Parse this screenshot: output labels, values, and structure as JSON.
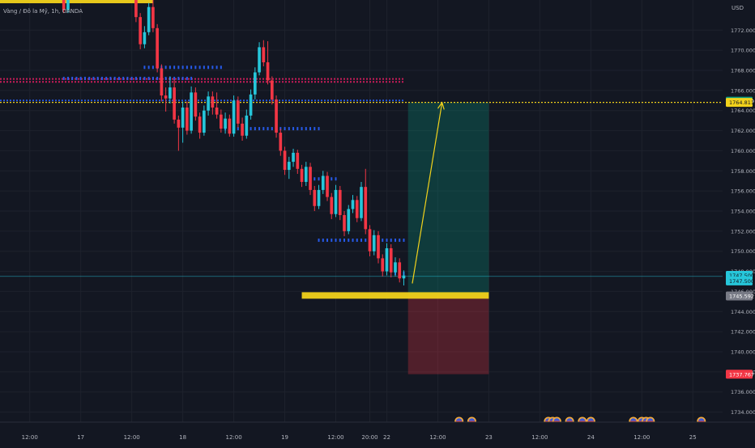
{
  "header": {
    "symbol_text": "Vàng / Đô la Mỹ, 1h, OANDA"
  },
  "price_axis": {
    "currency": "USD",
    "ticks": [
      1772,
      1770,
      1768,
      1766,
      1764,
      1762,
      1760,
      1758,
      1756,
      1754,
      1752,
      1750,
      1748,
      1746,
      1744,
      1742,
      1740,
      1738,
      1736,
      1734
    ],
    "tick_labels": [
      "1772.000",
      "1770.000",
      "1768.000",
      "1766.000",
      "1764.000",
      "1762.000",
      "1760.000",
      "1758.000",
      "1756.000",
      "1754.000",
      "1752.000",
      "1750.000",
      "1748.000",
      "1746.000",
      "1744.000",
      "1742.000",
      "1740.000",
      "1738.000",
      "1736.000",
      "1734.000"
    ],
    "badges": [
      {
        "label": "1764.929",
        "value": 1764.929,
        "bg": "#089981",
        "fg": "#ffffff"
      },
      {
        "label": "1764.811",
        "value": 1764.811,
        "bg": "#f2d21b",
        "fg": "#131722"
      },
      {
        "label": "1747.500",
        "value": 1747.6,
        "bg": "#26c6da",
        "fg": "#131722"
      },
      {
        "label": "1747.500",
        "value": 1747.05,
        "bg": "#26c6da",
        "fg": "#131722"
      },
      {
        "label": "1745.592",
        "value": 1745.55,
        "bg": "#787b86",
        "fg": "#ffffff"
      },
      {
        "label": "1737.767",
        "value": 1737.767,
        "bg": "#f23645",
        "fg": "#ffffff"
      }
    ]
  },
  "time_axis": {
    "ticks": [
      {
        "label": "12:00",
        "index": -8
      },
      {
        "label": "17",
        "index": 4
      },
      {
        "label": "12:00",
        "index": 16
      },
      {
        "label": "18",
        "index": 28
      },
      {
        "label": "12:00",
        "index": 40
      },
      {
        "label": "19",
        "index": 52
      },
      {
        "label": "12:00",
        "index": 64
      },
      {
        "label": "20:00",
        "index": 72
      },
      {
        "label": "22",
        "index": 76
      },
      {
        "label": "12:00",
        "index": 88
      },
      {
        "label": "23",
        "index": 100
      },
      {
        "label": "12:00",
        "index": 112
      },
      {
        "label": "24",
        "index": 124
      },
      {
        "label": "12:00",
        "index": 136
      },
      {
        "label": "25",
        "index": 148
      }
    ]
  },
  "colors": {
    "background": "#131722",
    "grid": "#1e222d",
    "up": "#26c6da",
    "down": "#f23645",
    "axis_text": "#b2b5be",
    "level_yellow": "#f2d21b",
    "profit_zone": "#089981",
    "loss_zone": "#f23645",
    "marker_blue": "#2962ff",
    "marker_pink": "#e91e63"
  },
  "chart_data": {
    "type": "candlestick",
    "interval": "1h",
    "y_range": [
      1733,
      1775
    ],
    "x_range": [
      -15,
      155
    ],
    "grid": true,
    "candles": [
      {
        "i": 0,
        "o": 1776.0,
        "h": 1776.6,
        "l": 1773.7,
        "c": 1774.0
      },
      {
        "i": 1,
        "o": 1774.0,
        "h": 1776.6,
        "l": 1773.7,
        "c": 1775.7
      },
      {
        "i": 2,
        "o": 1775.7,
        "h": 1777.0,
        "l": 1775.2,
        "c": 1776.4
      },
      {
        "i": 3,
        "o": 1776.4,
        "h": 1776.6,
        "l": 1775.5,
        "c": 1775.9
      },
      {
        "i": 16,
        "o": 1776.4,
        "h": 1777.0,
        "l": 1775.3,
        "c": 1775.6
      },
      {
        "i": 17,
        "o": 1775.6,
        "h": 1776.1,
        "l": 1772.8,
        "c": 1773.3
      },
      {
        "i": 18,
        "o": 1773.3,
        "h": 1773.7,
        "l": 1770.1,
        "c": 1770.6
      },
      {
        "i": 19,
        "o": 1770.6,
        "h": 1772.4,
        "l": 1770.2,
        "c": 1771.8
      },
      {
        "i": 20,
        "o": 1771.8,
        "h": 1774.7,
        "l": 1771.5,
        "c": 1774.3
      },
      {
        "i": 21,
        "o": 1774.3,
        "h": 1775.0,
        "l": 1771.8,
        "c": 1772.2
      },
      {
        "i": 22,
        "o": 1772.2,
        "h": 1772.6,
        "l": 1767.8,
        "c": 1768.2
      },
      {
        "i": 23,
        "o": 1768.2,
        "h": 1768.6,
        "l": 1764.9,
        "c": 1765.5
      },
      {
        "i": 24,
        "o": 1765.5,
        "h": 1766.3,
        "l": 1763.9,
        "c": 1765.2
      },
      {
        "i": 25,
        "o": 1765.2,
        "h": 1767.4,
        "l": 1764.7,
        "c": 1766.3
      },
      {
        "i": 26,
        "o": 1766.3,
        "h": 1767.1,
        "l": 1762.7,
        "c": 1763.1
      },
      {
        "i": 27,
        "o": 1763.1,
        "h": 1763.5,
        "l": 1760.0,
        "c": 1762.3
      },
      {
        "i": 28,
        "o": 1762.3,
        "h": 1764.9,
        "l": 1760.8,
        "c": 1764.3
      },
      {
        "i": 29,
        "o": 1764.3,
        "h": 1764.9,
        "l": 1761.6,
        "c": 1762.0
      },
      {
        "i": 30,
        "o": 1762.0,
        "h": 1766.4,
        "l": 1761.7,
        "c": 1765.8
      },
      {
        "i": 31,
        "o": 1765.8,
        "h": 1766.3,
        "l": 1763.0,
        "c": 1763.4
      },
      {
        "i": 32,
        "o": 1763.4,
        "h": 1763.8,
        "l": 1761.2,
        "c": 1761.8
      },
      {
        "i": 33,
        "o": 1761.8,
        "h": 1764.5,
        "l": 1761.5,
        "c": 1764.0
      },
      {
        "i": 34,
        "o": 1764.0,
        "h": 1765.9,
        "l": 1763.5,
        "c": 1765.4
      },
      {
        "i": 35,
        "o": 1765.4,
        "h": 1765.9,
        "l": 1763.6,
        "c": 1764.3
      },
      {
        "i": 36,
        "o": 1764.3,
        "h": 1765.8,
        "l": 1763.2,
        "c": 1763.6
      },
      {
        "i": 37,
        "o": 1763.6,
        "h": 1764.1,
        "l": 1761.8,
        "c": 1762.2
      },
      {
        "i": 38,
        "o": 1762.2,
        "h": 1763.8,
        "l": 1761.7,
        "c": 1763.2
      },
      {
        "i": 39,
        "o": 1763.2,
        "h": 1763.6,
        "l": 1761.4,
        "c": 1761.7
      },
      {
        "i": 40,
        "o": 1761.7,
        "h": 1765.5,
        "l": 1761.4,
        "c": 1765.0
      },
      {
        "i": 41,
        "o": 1765.0,
        "h": 1765.4,
        "l": 1762.3,
        "c": 1762.7
      },
      {
        "i": 42,
        "o": 1762.7,
        "h": 1763.3,
        "l": 1761.0,
        "c": 1761.5
      },
      {
        "i": 43,
        "o": 1761.5,
        "h": 1764.1,
        "l": 1761.2,
        "c": 1763.5
      },
      {
        "i": 44,
        "o": 1763.5,
        "h": 1766.1,
        "l": 1763.1,
        "c": 1765.6
      },
      {
        "i": 45,
        "o": 1765.6,
        "h": 1768.3,
        "l": 1765.1,
        "c": 1767.8
      },
      {
        "i": 46,
        "o": 1767.8,
        "h": 1770.8,
        "l": 1767.5,
        "c": 1770.3
      },
      {
        "i": 47,
        "o": 1770.3,
        "h": 1771.0,
        "l": 1768.4,
        "c": 1768.8
      },
      {
        "i": 48,
        "o": 1768.8,
        "h": 1770.9,
        "l": 1766.6,
        "c": 1767.0
      },
      {
        "i": 49,
        "o": 1767.0,
        "h": 1767.4,
        "l": 1764.6,
        "c": 1765.1
      },
      {
        "i": 50,
        "o": 1765.1,
        "h": 1765.5,
        "l": 1761.3,
        "c": 1761.8
      },
      {
        "i": 51,
        "o": 1761.8,
        "h": 1762.2,
        "l": 1759.5,
        "c": 1760.0
      },
      {
        "i": 52,
        "o": 1760.0,
        "h": 1760.4,
        "l": 1757.6,
        "c": 1758.1
      },
      {
        "i": 53,
        "o": 1758.1,
        "h": 1759.4,
        "l": 1757.2,
        "c": 1758.9
      },
      {
        "i": 54,
        "o": 1758.9,
        "h": 1760.2,
        "l": 1758.4,
        "c": 1759.8
      },
      {
        "i": 55,
        "o": 1759.8,
        "h": 1760.1,
        "l": 1757.7,
        "c": 1758.2
      },
      {
        "i": 56,
        "o": 1758.2,
        "h": 1758.6,
        "l": 1756.4,
        "c": 1756.9
      },
      {
        "i": 57,
        "o": 1756.9,
        "h": 1758.9,
        "l": 1756.5,
        "c": 1758.4
      },
      {
        "i": 58,
        "o": 1758.4,
        "h": 1758.8,
        "l": 1755.6,
        "c": 1756.1
      },
      {
        "i": 59,
        "o": 1756.1,
        "h": 1756.5,
        "l": 1754.0,
        "c": 1754.5
      },
      {
        "i": 60,
        "o": 1754.5,
        "h": 1756.6,
        "l": 1754.2,
        "c": 1756.1
      },
      {
        "i": 61,
        "o": 1756.1,
        "h": 1758.0,
        "l": 1755.7,
        "c": 1757.5
      },
      {
        "i": 62,
        "o": 1757.5,
        "h": 1757.9,
        "l": 1755.0,
        "c": 1755.4
      },
      {
        "i": 63,
        "o": 1755.4,
        "h": 1755.8,
        "l": 1753.2,
        "c": 1753.7
      },
      {
        "i": 64,
        "o": 1753.7,
        "h": 1756.6,
        "l": 1753.4,
        "c": 1756.1
      },
      {
        "i": 65,
        "o": 1756.1,
        "h": 1756.5,
        "l": 1753.1,
        "c": 1753.6
      },
      {
        "i": 66,
        "o": 1753.6,
        "h": 1754.0,
        "l": 1751.5,
        "c": 1752.0
      },
      {
        "i": 67,
        "o": 1752.0,
        "h": 1754.6,
        "l": 1751.7,
        "c": 1754.2
      },
      {
        "i": 68,
        "o": 1754.2,
        "h": 1755.6,
        "l": 1753.8,
        "c": 1755.1
      },
      {
        "i": 69,
        "o": 1755.1,
        "h": 1755.5,
        "l": 1752.9,
        "c": 1753.3
      },
      {
        "i": 70,
        "o": 1753.3,
        "h": 1756.9,
        "l": 1753.0,
        "c": 1756.4
      },
      {
        "i": 71,
        "o": 1756.4,
        "h": 1758.2,
        "l": 1751.7,
        "c": 1752.2
      },
      {
        "i": 72,
        "o": 1752.2,
        "h": 1752.6,
        "l": 1749.5,
        "c": 1750.0
      },
      {
        "i": 73,
        "o": 1750.0,
        "h": 1752.1,
        "l": 1749.6,
        "c": 1751.6
      },
      {
        "i": 74,
        "o": 1751.6,
        "h": 1752.0,
        "l": 1748.8,
        "c": 1749.3
      },
      {
        "i": 75,
        "o": 1749.3,
        "h": 1749.7,
        "l": 1747.5,
        "c": 1748.0
      },
      {
        "i": 76,
        "o": 1748.0,
        "h": 1750.8,
        "l": 1747.6,
        "c": 1750.3
      },
      {
        "i": 77,
        "o": 1750.3,
        "h": 1750.7,
        "l": 1747.4,
        "c": 1747.9
      },
      {
        "i": 78,
        "o": 1747.9,
        "h": 1749.4,
        "l": 1747.5,
        "c": 1748.9
      },
      {
        "i": 79,
        "o": 1748.9,
        "h": 1749.3,
        "l": 1746.9,
        "c": 1747.3
      },
      {
        "i": 80,
        "o": 1747.3,
        "h": 1748.1,
        "l": 1746.6,
        "c": 1747.6
      }
    ],
    "horizontal_levels": [
      {
        "value": 1764.811,
        "style": "dotted",
        "color": "#f2d21b",
        "from_index": -15,
        "to_index": 155
      },
      {
        "value": 1747.5,
        "style": "solid-thin",
        "color": "#26c6da",
        "from_index": -15,
        "to_index": 155
      },
      {
        "value": 1775.0,
        "style": "thick",
        "color": "#f2d21b",
        "from_index": -15,
        "to_index": 21
      },
      {
        "value": 1745.6,
        "style": "thick",
        "color": "#f2d21b",
        "from_index": 56,
        "to_index": 100
      }
    ],
    "dotted_bands": [
      {
        "value": 1767.15,
        "color": "#e91e63",
        "from_index": -15,
        "to_index": 80
      },
      {
        "value": 1766.85,
        "color": "#e91e63",
        "from_index": -15,
        "to_index": 80
      },
      {
        "value": 1765.0,
        "color": "#2962ff",
        "from_index": -15,
        "to_index": 80
      }
    ],
    "position": {
      "type": "long",
      "from_index": 81,
      "to_index": 100,
      "entry": 1745.6,
      "target": 1764.811,
      "stop": 1737.767
    },
    "projection_arrow": {
      "from": {
        "i": 82,
        "v": 1746.8
      },
      "to": {
        "i": 89,
        "v": 1764.8
      }
    },
    "marker_rows": [
      {
        "value": 1768.3,
        "from_index": 19,
        "to_index": 37,
        "color": "#2962ff"
      },
      {
        "value": 1767.2,
        "from_index": 0,
        "to_index": 30,
        "color": "#2962ff"
      },
      {
        "value": 1762.2,
        "from_index": 38,
        "to_index": 60,
        "color": "#2962ff"
      },
      {
        "value": 1751.1,
        "from_index": 60,
        "to_index": 80,
        "color": "#2962ff"
      },
      {
        "value": 1757.2,
        "from_index": 59,
        "to_index": 64,
        "color": "#2962ff"
      },
      {
        "value": 1747.8,
        "from_index": 78,
        "to_index": 80,
        "color": "#2962ff"
      }
    ],
    "event_icons": [
      {
        "index": 93
      },
      {
        "index": 96
      },
      {
        "index": 114
      },
      {
        "index": 115
      },
      {
        "index": 116
      },
      {
        "index": 119
      },
      {
        "index": 122
      },
      {
        "index": 124
      },
      {
        "index": 134
      },
      {
        "index": 136
      },
      {
        "index": 137
      },
      {
        "index": 138
      },
      {
        "index": 150
      }
    ]
  }
}
